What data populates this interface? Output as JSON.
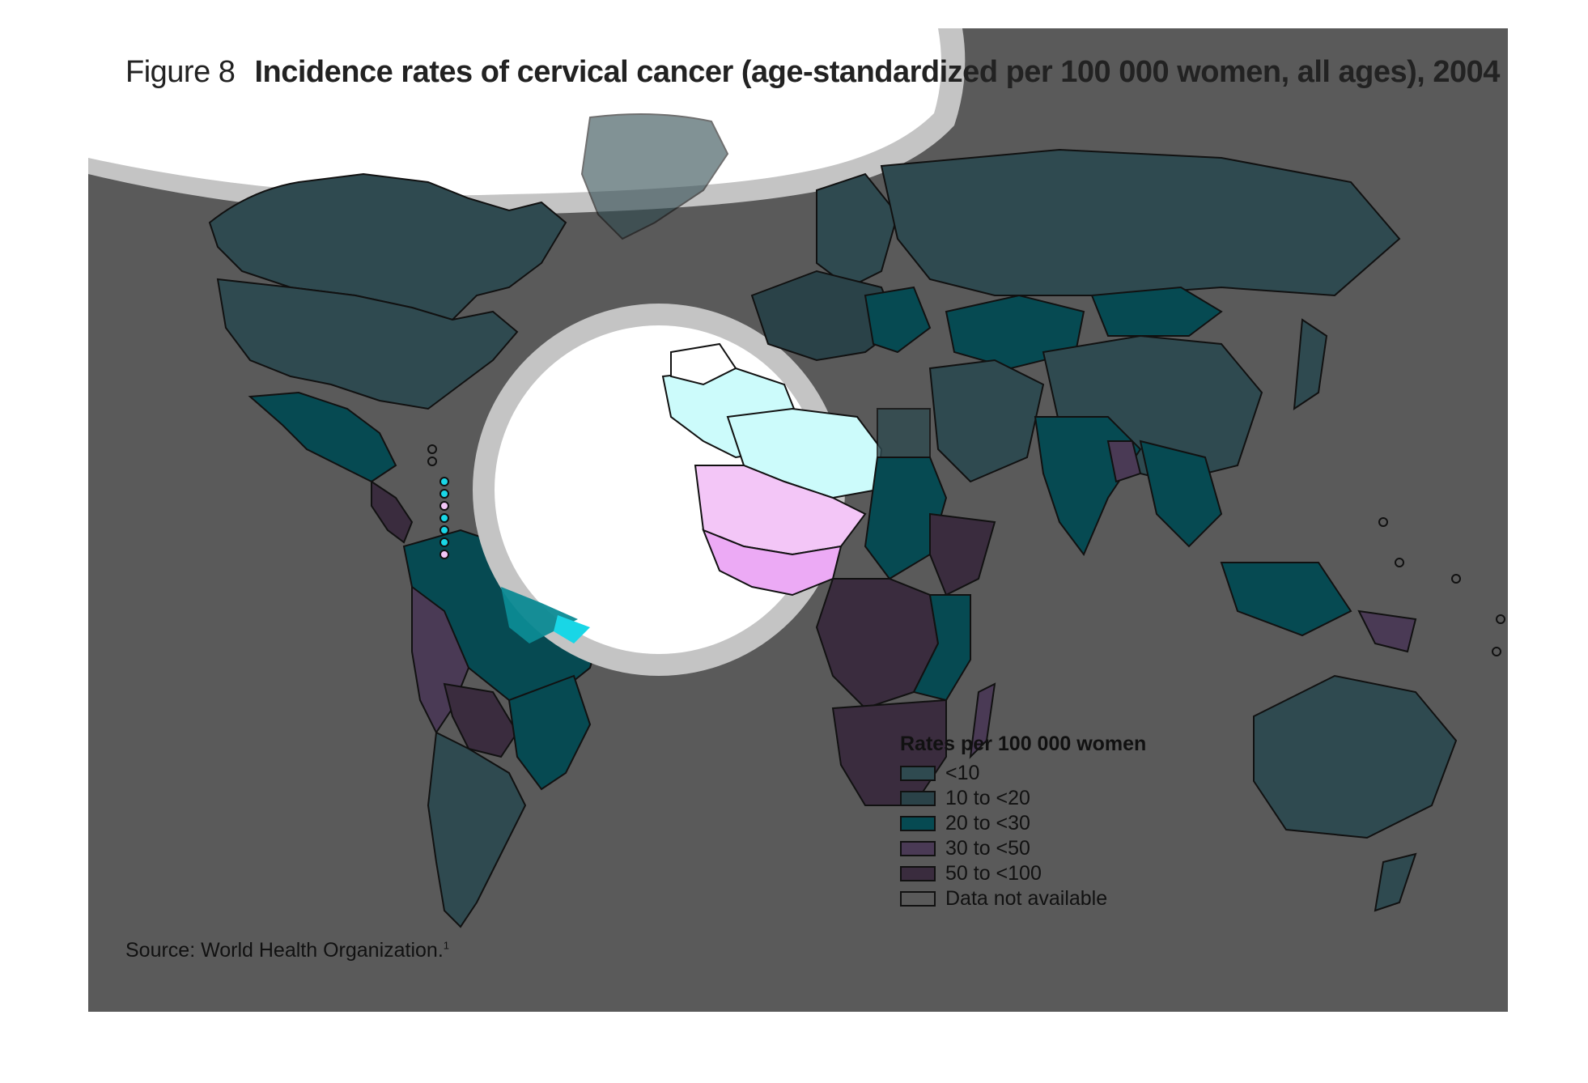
{
  "figure": {
    "label": "Figure 8",
    "title": "Incidence rates of cervical cancer (age-standardized per 100 000 women, all ages), 2004"
  },
  "source": {
    "text": "Source: World Health Organization.",
    "footnote": "1"
  },
  "legend": {
    "title": "Rates per 100 000 women",
    "items": [
      {
        "label": "<10",
        "color": "#2f4a50"
      },
      {
        "label": "10 to <20",
        "color": "#2a4248"
      },
      {
        "label": "20 to <30",
        "color": "#064a52"
      },
      {
        "label": "30 to <50",
        "color": "#4a3a55"
      },
      {
        "label": "50 to <100",
        "color": "#3a2c3e"
      },
      {
        "label": "Data not available",
        "color": "#5a5a5a"
      }
    ]
  },
  "colors": {
    "background": "#5a5a5a",
    "spotlight_ring": "#c4c4c4",
    "highlight_low": "#ccfbfb",
    "highlight_mid": "#f3c6f7",
    "highlight_high": "#ecaaf5",
    "highlight_cyan": "#19d6e6"
  }
}
